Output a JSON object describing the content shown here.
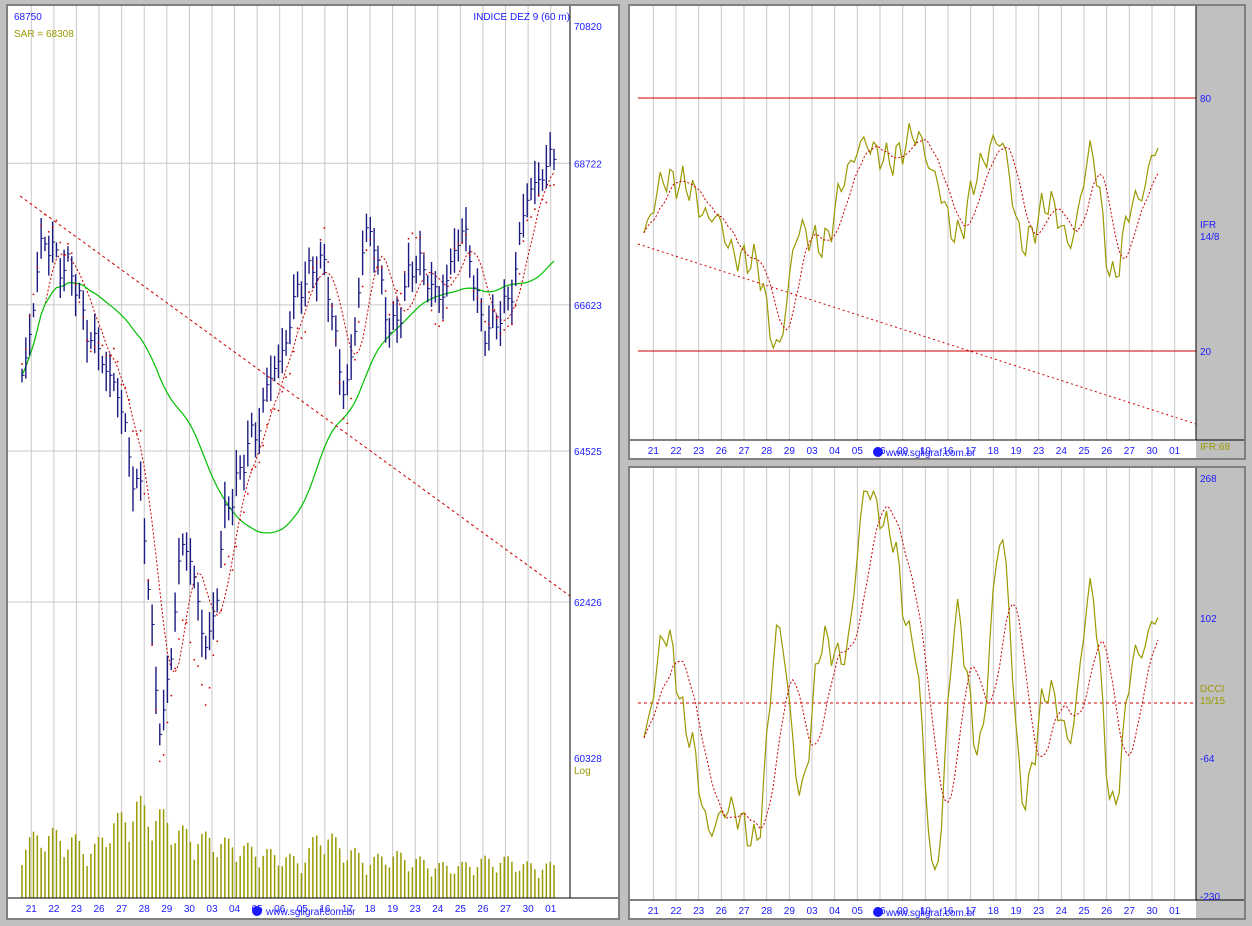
{
  "main": {
    "corner_value": "68750",
    "title": "INDICE DEZ 9 (60 m)",
    "sar_label": "SAR = 68308",
    "y_ticks": [
      "70820",
      "68722",
      "66623",
      "64525",
      "62426",
      "60328"
    ],
    "log_label": "Log",
    "x_ticks": [
      "21",
      "22",
      "23",
      "26",
      "27",
      "28",
      "29",
      "30",
      "03",
      "04",
      "05",
      "06",
      "05",
      "16",
      "17",
      "18",
      "19",
      "23",
      "24",
      "25",
      "26",
      "27",
      "30",
      "01"
    ],
    "watermark": "www.sgligraf.com.br"
  },
  "ifr": {
    "y_ticks": [
      "80",
      "20"
    ],
    "label_name": "IFR",
    "label_params": "14/8",
    "value_label": "IFR:68",
    "x_ticks": [
      "21",
      "22",
      "23",
      "26",
      "27",
      "28",
      "29",
      "03",
      "04",
      "05",
      "06",
      "09",
      "10",
      "16",
      "17",
      "18",
      "19",
      "23",
      "24",
      "25",
      "26",
      "27",
      "30",
      "01"
    ],
    "watermark": "www.sgligraf.com.br"
  },
  "cci": {
    "y_ticks": [
      "268",
      "102",
      "-64",
      "-230"
    ],
    "label_name": "DCCI",
    "label_params": "15/15",
    "x_ticks": [
      "21",
      "22",
      "23",
      "26",
      "27",
      "28",
      "29",
      "03",
      "04",
      "05",
      "06",
      "09",
      "10",
      "16",
      "17",
      "18",
      "19",
      "23",
      "24",
      "25",
      "26",
      "27",
      "30",
      "01"
    ],
    "watermark": "www.sgligraf.com.br"
  },
  "colors": {
    "bars": "#1a1a80",
    "ma_red": "#cc0000",
    "ma_green": "#00c000",
    "olive": "#999900",
    "axis_text": "#1a1aff",
    "grid": "#c8c8c8"
  },
  "chart_data": [
    {
      "type": "bar",
      "title": "INDICE DEZ 9 (60 m)",
      "scale": "log",
      "ylim": [
        60328,
        70820
      ],
      "categories": [
        "21",
        "22",
        "23",
        "26",
        "27",
        "28",
        "29",
        "30",
        "03",
        "04",
        "05",
        "06",
        "05",
        "16",
        "17",
        "18",
        "19",
        "23",
        "24",
        "25",
        "26",
        "27",
        "30",
        "01"
      ],
      "series": [
        {
          "name": "price",
          "values": [
            65600,
            67600,
            67100,
            66200,
            65400,
            64100,
            60800,
            63200,
            61900,
            63800,
            64800,
            65700,
            66900,
            67200,
            65400,
            67800,
            66200,
            67300,
            66700,
            67700,
            66300,
            66600,
            68400,
            68750
          ]
        },
        {
          "name": "SAR",
          "values": [
            65800,
            67900,
            67400,
            66000,
            65900,
            64800,
            60400,
            62100,
            61200,
            63000,
            64200,
            65200,
            66100,
            67700,
            64900,
            67500,
            66600,
            67700,
            66300,
            67600,
            66500,
            66200,
            68000,
            68308
          ]
        },
        {
          "name": "volume",
          "values": [
            0.5,
            0.6,
            0.55,
            0.45,
            0.7,
            0.85,
            0.75,
            0.6,
            0.55,
            0.5,
            0.45,
            0.4,
            0.35,
            0.6,
            0.45,
            0.35,
            0.4,
            0.35,
            0.3,
            0.3,
            0.35,
            0.35,
            0.3,
            0.3
          ]
        }
      ]
    },
    {
      "type": "line",
      "title": "IFR 14/8",
      "ylim": [
        0,
        100
      ],
      "reference_lines": [
        80,
        20
      ],
      "categories": [
        "21",
        "22",
        "23",
        "26",
        "27",
        "28",
        "29",
        "03",
        "04",
        "05",
        "06",
        "09",
        "10",
        "16",
        "17",
        "18",
        "19",
        "23",
        "24",
        "25",
        "26",
        "27",
        "30",
        "01"
      ],
      "series": [
        {
          "name": "IFR",
          "values": [
            48,
            62,
            58,
            52,
            44,
            40,
            21,
            50,
            44,
            62,
            70,
            64,
            72,
            62,
            46,
            64,
            70,
            44,
            56,
            46,
            66,
            38,
            56,
            68
          ]
        }
      ]
    },
    {
      "type": "line",
      "title": "DCCI 15/15",
      "ylim": [
        -230,
        268
      ],
      "categories": [
        "21",
        "22",
        "23",
        "26",
        "27",
        "28",
        "29",
        "03",
        "04",
        "05",
        "06",
        "09",
        "10",
        "16",
        "17",
        "18",
        "19",
        "23",
        "24",
        "25",
        "26",
        "27",
        "30",
        "01"
      ],
      "series": [
        {
          "name": "DCCI",
          "values": [
            -40,
            90,
            -40,
            -150,
            -120,
            -170,
            90,
            -100,
            70,
            60,
            260,
            200,
            80,
            -200,
            100,
            -50,
            200,
            -120,
            20,
            -40,
            130,
            -120,
            60,
            102
          ]
        }
      ]
    }
  ]
}
